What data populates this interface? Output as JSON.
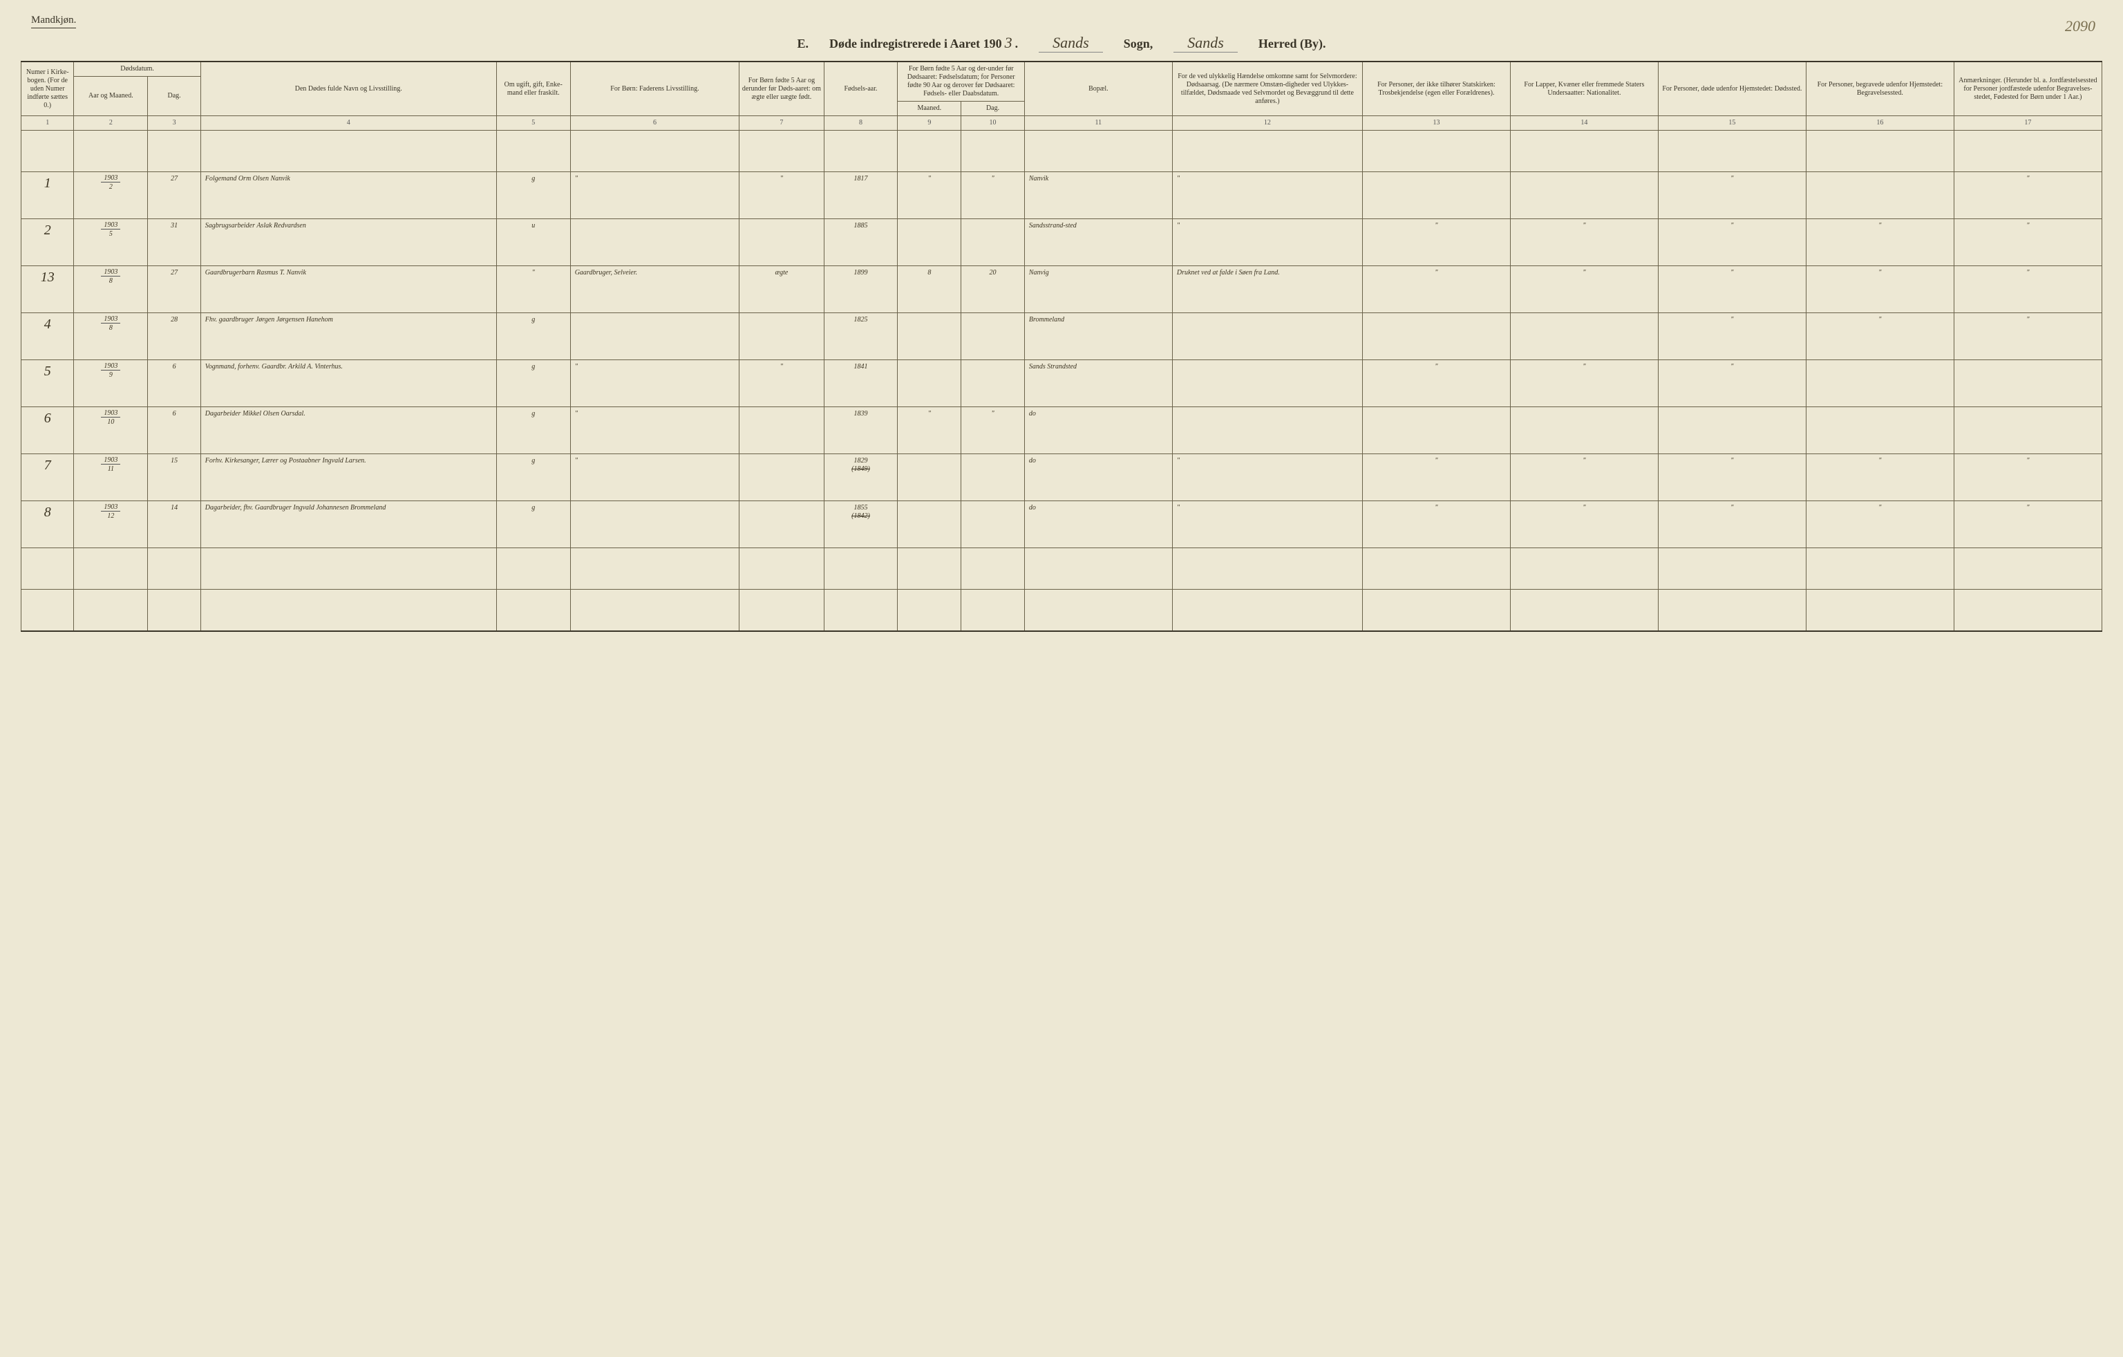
{
  "page_number": "2090",
  "gender_label": "Mandkjøn.",
  "title": {
    "prefix": "E.",
    "main": "Døde indregistrerede i Aaret 190",
    "year_script": "3",
    "sogn_script": "Sands",
    "sogn_label": "Sogn,",
    "herred_script": "Sands",
    "herred_label": "Herred (By)."
  },
  "headers": {
    "c1": "Numer i Kirke-bogen. (For de uden Numer indførte sættes 0.)",
    "c2a": "Dødsdatum.",
    "c2": "Aar og Maaned.",
    "c3": "Dag.",
    "c4": "Den Dødes fulde Navn og Livsstilling.",
    "c5": "Om ugift, gift, Enke-mand eller fraskilt.",
    "c6": "For Børn: Faderens Livsstilling.",
    "c7": "For Børn fødte 5 Aar og derunder før Døds-aaret: om ægte eller uægte født.",
    "c8": "Fødsels-aar.",
    "c9_10": "For Børn fødte 5 Aar og der-under før Dødsaaret: Fødselsdatum; for Personer fødte 90 Aar og derover før Dødsaaret: Fødsels- eller Daabsdatum.",
    "c9": "Maaned.",
    "c10": "Dag.",
    "c11": "Bopæl.",
    "c12": "For de ved ulykkelig Hændelse omkomne samt for Selvmordere: Dødsaarsag. (De nærmere Omstæn-digheder ved Ulykkes-tilfældet, Dødsmaade ved Selvmordet og Bevæggrund til dette anføres.)",
    "c13": "For Personer, der ikke tilhører Statskirken: Trosbekjendelse (egen eller Forældrenes).",
    "c14": "For Lapper, Kvæner eller fremmede Staters Undersaatter: Nationalitet.",
    "c15": "For Personer, døde udenfor Hjemstedet: Dødssted.",
    "c16": "For Personer, begravede udenfor Hjemstedet: Begravelsessted.",
    "c17": "Anmærkninger. (Herunder bl. a. Jordfæstelsessted for Personer jordfæstede udenfor Begravelses-stedet, Fødested for Børn under 1 Aar.)"
  },
  "colnums": [
    "1",
    "2",
    "3",
    "4",
    "5",
    "6",
    "7",
    "8",
    "9",
    "10",
    "11",
    "12",
    "13",
    "14",
    "15",
    "16",
    "17"
  ],
  "rows": [
    {
      "n": "1",
      "ym_num": "1903",
      "ym_den": "2",
      "day": "27",
      "name": "Folgemand Orm Olsen Nanvik",
      "civil": "g",
      "father": "\"",
      "legit": "\"",
      "birth": "1817",
      "bm": "\"",
      "bd": "\"",
      "bopael": "Nanvik",
      "cause": "\"",
      "c13": "",
      "c14": "",
      "c15": "\"",
      "c16": "",
      "c17": "\""
    },
    {
      "n": "2",
      "ym_num": "1903",
      "ym_den": "5",
      "day": "31",
      "name": "Sagbrugsarbeider Aslak Redvardsen",
      "civil": "u",
      "father": "",
      "legit": "",
      "birth": "1885",
      "bm": "",
      "bd": "",
      "bopael": "Sandsstrand-sted",
      "cause": "\"",
      "c13": "\"",
      "c14": "\"",
      "c15": "\"",
      "c16": "\"",
      "c17": "\""
    },
    {
      "n": "13",
      "ym_num": "1903",
      "ym_den": "8",
      "day": "27",
      "name": "Gaardbrugerbarn Rasmus T. Nanvik",
      "civil": "\"",
      "father": "Gaardbruger, Selveier.",
      "legit": "ægte",
      "birth": "1899",
      "bm": "8",
      "bd": "20",
      "bopael": "Nanvig",
      "cause": "Druknet ved at falde i Søen fra Land.",
      "c13": "\"",
      "c14": "\"",
      "c15": "\"",
      "c16": "\"",
      "c17": "\""
    },
    {
      "n": "4",
      "ym_num": "1903",
      "ym_den": "8",
      "day": "28",
      "name": "Fhv. gaardbruger Jørgen Jørgensen Hanehom",
      "civil": "g",
      "father": "",
      "legit": "",
      "birth": "1825",
      "bm": "",
      "bd": "",
      "bopael": "Brommeland",
      "cause": "",
      "c13": "",
      "c14": "",
      "c15": "\"",
      "c16": "\"",
      "c17": "\""
    },
    {
      "n": "5",
      "ym_num": "1903",
      "ym_den": "9",
      "day": "6",
      "name": "Vognmand, forhenv. Gaardbr. Arkild A. Vinterhus.",
      "civil": "g",
      "father": "\"",
      "legit": "\"",
      "birth": "1841",
      "bm": "",
      "bd": "",
      "bopael": "Sands Strandsted",
      "cause": "",
      "c13": "\"",
      "c14": "\"",
      "c15": "\"",
      "c16": "",
      "c17": ""
    },
    {
      "n": "6",
      "ym_num": "1903",
      "ym_den": "10",
      "day": "6",
      "name": "Dagarbeider Mikkel Olsen Oarsdal.",
      "civil": "g",
      "father": "\"",
      "legit": "",
      "birth": "1839",
      "bm": "\"",
      "bd": "\"",
      "bopael": "do",
      "cause": "",
      "c13": "",
      "c14": "",
      "c15": "",
      "c16": "",
      "c17": ""
    },
    {
      "n": "7",
      "ym_num": "1903",
      "ym_den": "11",
      "day": "15",
      "name": "Forhv. Kirkesanger, Lærer og Postaabner Ingvald Larsen.",
      "civil": "g",
      "father": "\"",
      "legit": "",
      "birth": "1829",
      "birth_struck": "(1849)",
      "bm": "",
      "bd": "",
      "bopael": "do",
      "cause": "\"",
      "c13": "\"",
      "c14": "\"",
      "c15": "\"",
      "c16": "\"",
      "c17": "\""
    },
    {
      "n": "8",
      "ym_num": "1903",
      "ym_den": "12",
      "day": "14",
      "name": "Dagarbeider, fhv. Gaardbruger Ingvald Johannesen Brommeland",
      "civil": "g",
      "father": "",
      "legit": "",
      "birth": "1855",
      "birth_struck": "(1842)",
      "bm": "",
      "bd": "",
      "bopael": "do",
      "cause": "\"",
      "c13": "\"",
      "c14": "\"",
      "c15": "\"",
      "c16": "\"",
      "c17": "\""
    }
  ],
  "colwidths": [
    "2.5%",
    "3.5%",
    "2.5%",
    "14%",
    "3.5%",
    "8%",
    "4%",
    "3.5%",
    "3%",
    "3%",
    "7%",
    "9%",
    "7%",
    "7%",
    "7%",
    "7%",
    "7%"
  ]
}
